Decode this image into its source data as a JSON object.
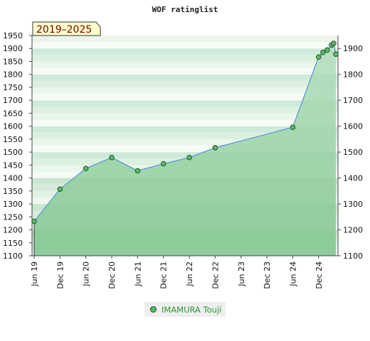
{
  "chart_data": {
    "type": "area",
    "title": "WOF ratinglist",
    "period_badge": "2019–2025",
    "colors": {
      "fill": "#7cc48c",
      "line": "#5b9bd5",
      "marker": "#55bb66"
    },
    "left_axis": {
      "min": 1100,
      "max": 1950,
      "ticks": [
        1100,
        1150,
        1200,
        1250,
        1300,
        1350,
        1400,
        1450,
        1500,
        1550,
        1600,
        1650,
        1700,
        1750,
        1800,
        1850,
        1900,
        1950
      ]
    },
    "right_axis": {
      "ticks": [
        1100,
        1200,
        1300,
        1400,
        1500,
        1600,
        1700,
        1800,
        1900
      ]
    },
    "x_axis": {
      "min": 2019.417,
      "max": 2025.25,
      "ticks": [
        {
          "label": "Jun 19",
          "x": 2019.417
        },
        {
          "label": "Dec 19",
          "x": 2019.917
        },
        {
          "label": "Jun 20",
          "x": 2020.417
        },
        {
          "label": "Dec 20",
          "x": 2020.917
        },
        {
          "label": "Jun 21",
          "x": 2021.417
        },
        {
          "label": "Dec 21",
          "x": 2021.917
        },
        {
          "label": "Jun 22",
          "x": 2022.417
        },
        {
          "label": "Dec 22",
          "x": 2022.917
        },
        {
          "label": "Jun 23",
          "x": 2023.417
        },
        {
          "label": "Dec 23",
          "x": 2023.917
        },
        {
          "label": "Jun 24",
          "x": 2024.417
        },
        {
          "label": "Dec 24",
          "x": 2024.917
        }
      ]
    },
    "series": [
      {
        "name": "IMAMURA Touji",
        "points": [
          {
            "x": 2019.417,
            "y": 1233
          },
          {
            "x": 2019.917,
            "y": 1357
          },
          {
            "x": 2020.417,
            "y": 1437
          },
          {
            "x": 2020.917,
            "y": 1479
          },
          {
            "x": 2021.417,
            "y": 1428
          },
          {
            "x": 2021.917,
            "y": 1455
          },
          {
            "x": 2022.417,
            "y": 1479
          },
          {
            "x": 2022.917,
            "y": 1517
          },
          {
            "x": 2024.417,
            "y": 1596
          },
          {
            "x": 2024.917,
            "y": 1867
          },
          {
            "x": 2025.0,
            "y": 1885
          },
          {
            "x": 2025.083,
            "y": 1894
          },
          {
            "x": 2025.167,
            "y": 1913
          },
          {
            "x": 2025.208,
            "y": 1920
          },
          {
            "x": 2025.25,
            "y": 1878
          }
        ]
      }
    ]
  }
}
